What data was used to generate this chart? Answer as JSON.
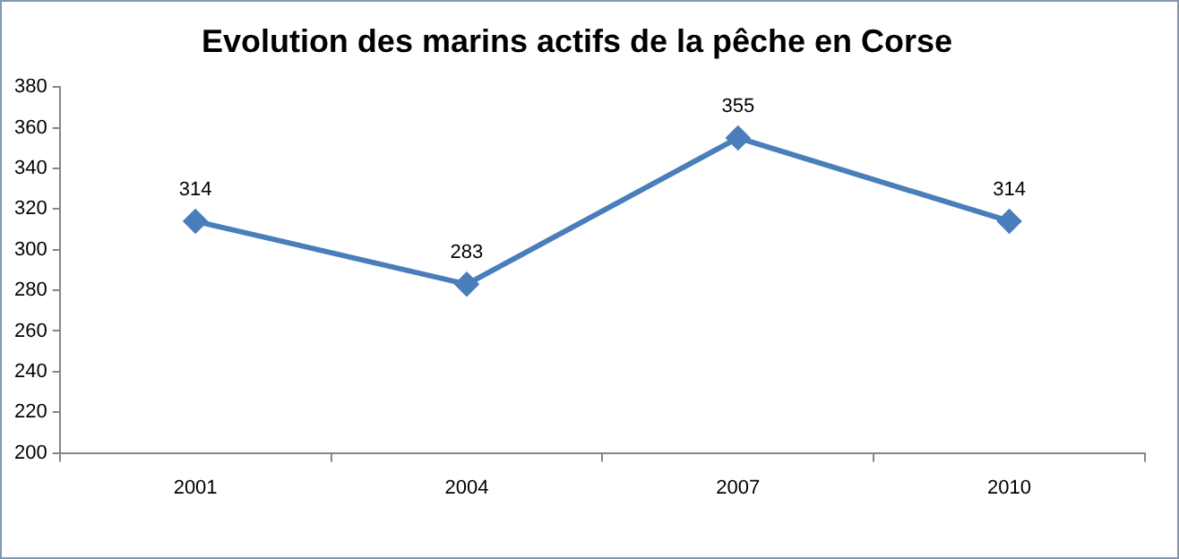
{
  "chart_data": {
    "type": "line",
    "title": "Evolution des marins actifs de la pêche en Corse",
    "categories": [
      "2001",
      "2004",
      "2007",
      "2010"
    ],
    "series": [
      {
        "color": "#4a7ebb",
        "values": [
          314,
          283,
          355,
          314
        ]
      }
    ],
    "ylim": [
      200,
      380
    ],
    "yticks": [
      200,
      220,
      240,
      260,
      280,
      300,
      320,
      340,
      360,
      380
    ],
    "grid": false,
    "legend": false,
    "marker": "diamond",
    "line_style": "solid",
    "data_labels": true
  }
}
